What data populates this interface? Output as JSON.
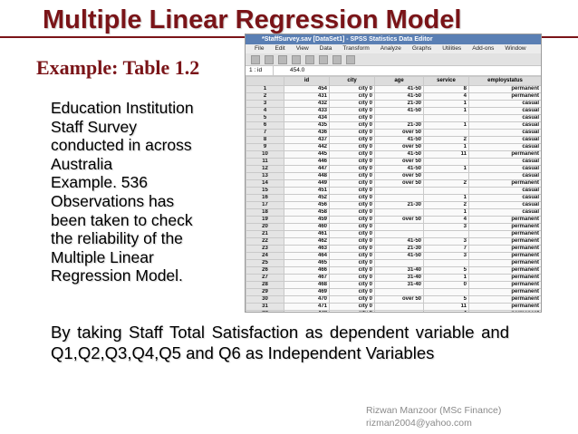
{
  "slide": {
    "title": "Multiple Linear Regression Model",
    "subtitle": "Example: Table 1.2",
    "body_lines": [
      "Education Institution",
      "Staff Survey",
      "conducted in across",
      "Australia",
      "Example. 536",
      "Observations has",
      "been taken to check",
      "the reliability of the",
      "Multiple Linear",
      "Regression Model."
    ],
    "conclusion": "By taking Staff Total Satisfaction as dependent variable and Q1,Q2,Q3,Q4,Q5 and Q6 as Independent Variables",
    "footer": {
      "author": "Rizwan Manzoor (MSc Finance)",
      "email": "rizman2004@yahoo.com"
    }
  },
  "spss": {
    "window_title": "*StaffSurvey.sav [DataSet1] - SPSS Statistics Data Editor",
    "menus": [
      "File",
      "Edit",
      "View",
      "Data",
      "Transform",
      "Analyze",
      "Graphs",
      "Utilities",
      "Add-ons",
      "Window"
    ],
    "cell_ref": "1 : id",
    "cell_value": "454.0",
    "columns": [
      "",
      "id",
      "city",
      "age",
      "service",
      "employstatus"
    ],
    "rows": [
      [
        "1",
        "454",
        "city 0",
        "41-50",
        "8",
        "permanent"
      ],
      [
        "2",
        "431",
        "city 0",
        "41-50",
        "4",
        "permanent"
      ],
      [
        "3",
        "432",
        "city 0",
        "21-30",
        "1",
        "casual"
      ],
      [
        "4",
        "433",
        "city 0",
        "41-50",
        "1",
        "casual"
      ],
      [
        "5",
        "434",
        "city 0",
        "",
        "",
        "casual"
      ],
      [
        "6",
        "435",
        "city 0",
        "21-30",
        "1",
        "casual"
      ],
      [
        "7",
        "436",
        "city 0",
        "over 50",
        "",
        "casual"
      ],
      [
        "8",
        "437",
        "city 0",
        "41-50",
        "2",
        "casual"
      ],
      [
        "9",
        "442",
        "city 0",
        "over 50",
        "1",
        "casual"
      ],
      [
        "10",
        "445",
        "city 0",
        "41-50",
        "11",
        "permanent"
      ],
      [
        "11",
        "446",
        "city 0",
        "over 50",
        "",
        "casual"
      ],
      [
        "12",
        "447",
        "city 0",
        "41-50",
        "1",
        "casual"
      ],
      [
        "13",
        "448",
        "city 0",
        "over 50",
        "",
        "casual"
      ],
      [
        "14",
        "449",
        "city 0",
        "over 50",
        "2",
        "permanent"
      ],
      [
        "15",
        "451",
        "city 0",
        "",
        "",
        "casual"
      ],
      [
        "16",
        "452",
        "city 0",
        "",
        "1",
        "casual"
      ],
      [
        "17",
        "456",
        "city 0",
        "21-30",
        "2",
        "casual"
      ],
      [
        "18",
        "458",
        "city 0",
        "",
        "1",
        "casual"
      ],
      [
        "19",
        "459",
        "city 0",
        "over 50",
        "4",
        "permanent"
      ],
      [
        "20",
        "460",
        "city 0",
        "",
        "3",
        "permanent"
      ],
      [
        "21",
        "461",
        "city 0",
        "",
        "",
        "permanent"
      ],
      [
        "22",
        "462",
        "city 0",
        "41-50",
        "3",
        "permanent"
      ],
      [
        "23",
        "463",
        "city 0",
        "21-30",
        "7",
        "permanent"
      ],
      [
        "24",
        "464",
        "city 0",
        "41-50",
        "3",
        "permanent"
      ],
      [
        "25",
        "465",
        "city 0",
        "",
        "",
        "permanent"
      ],
      [
        "26",
        "466",
        "city 0",
        "31-40",
        "5",
        "permanent"
      ],
      [
        "27",
        "467",
        "city 0",
        "31-40",
        "1",
        "permanent"
      ],
      [
        "28",
        "468",
        "city 0",
        "31-40",
        "0",
        "permanent"
      ],
      [
        "29",
        "469",
        "city 0",
        "",
        "",
        "permanent"
      ],
      [
        "30",
        "470",
        "city 0",
        "over 50",
        "5",
        "permanent"
      ],
      [
        "31",
        "471",
        "city 0",
        "",
        "11",
        "permanent"
      ],
      [
        "32",
        "472",
        "city 0",
        "",
        "4",
        "permanent"
      ]
    ]
  }
}
